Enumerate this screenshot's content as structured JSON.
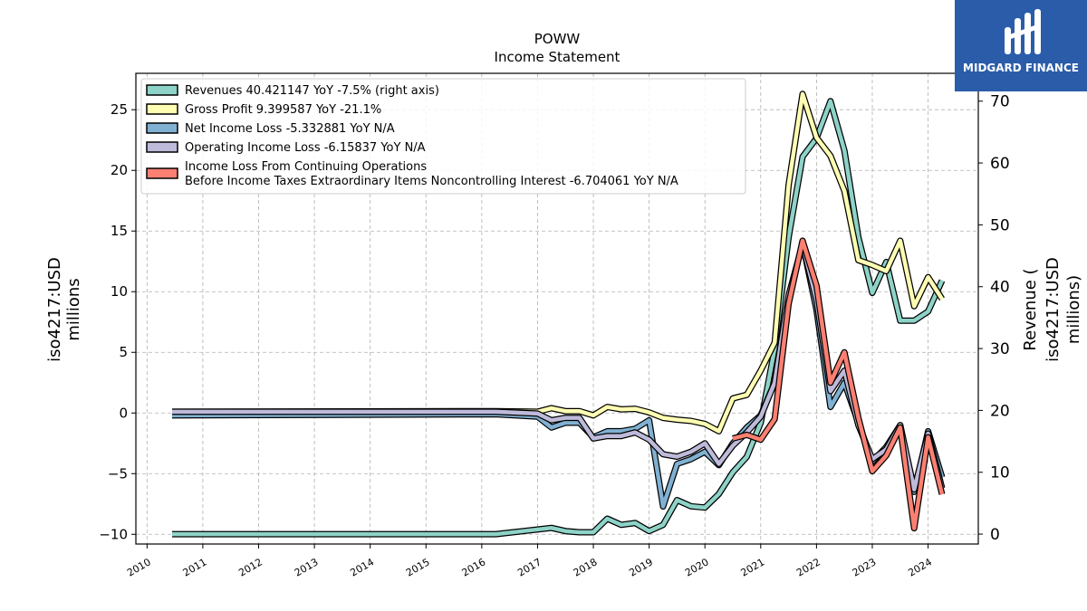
{
  "brand": {
    "name": "MIDGARD FINANCE",
    "color": "#2a5caa",
    "logo_icon": "midgard-logo-icon"
  },
  "chart_data": {
    "type": "line",
    "title": "POWW",
    "subtitle": "Income Statement",
    "ylabel_left": [
      "iso4217:USD",
      "millions"
    ],
    "ylabel_right": [
      "Revenue (",
      "iso4217:USD",
      "millions)"
    ],
    "xlim": [
      2009.8,
      2024.9
    ],
    "ylim_left": [
      -10.8,
      28.0
    ],
    "ylim_right": [
      -1.6,
      74.5
    ],
    "yticks_left": [
      -10,
      -5,
      0,
      5,
      10,
      15,
      20,
      25
    ],
    "yticks_left_labels": [
      "−10",
      "−5",
      "0",
      "5",
      "10",
      "15",
      "20",
      "25"
    ],
    "yticks_right": [
      0,
      10,
      20,
      30,
      40,
      50,
      60,
      70
    ],
    "xticks": [
      2010,
      2011,
      2012,
      2013,
      2014,
      2015,
      2016,
      2017,
      2018,
      2019,
      2020,
      2021,
      2022,
      2023,
      2024
    ],
    "grid": true,
    "legend_position": "top-left",
    "series": [
      {
        "name": "Revenues  40.421147 YoY -7.5% (right axis)",
        "axis": "right",
        "color": "#8dd3c7",
        "points": [
          [
            2010.45,
            0
          ],
          [
            2016.25,
            0
          ],
          [
            2016.75,
            0.5
          ],
          [
            2017.25,
            1.0
          ],
          [
            2017.5,
            0.5
          ],
          [
            2017.75,
            0.3
          ],
          [
            2018.0,
            0.3
          ],
          [
            2018.25,
            2.5
          ],
          [
            2018.5,
            1.5
          ],
          [
            2018.75,
            1.8
          ],
          [
            2019.0,
            0.5
          ],
          [
            2019.25,
            1.5
          ],
          [
            2019.5,
            5.5
          ],
          [
            2019.75,
            4.5
          ],
          [
            2020.0,
            4.3
          ],
          [
            2020.25,
            6.5
          ],
          [
            2020.5,
            10.0
          ],
          [
            2020.75,
            12.5
          ],
          [
            2021.0,
            18.0
          ],
          [
            2021.25,
            30.0
          ],
          [
            2021.5,
            48.0
          ],
          [
            2021.75,
            61.0
          ],
          [
            2022.0,
            64.0
          ],
          [
            2022.25,
            70.0
          ],
          [
            2022.5,
            62.0
          ],
          [
            2022.75,
            48.0
          ],
          [
            2023.0,
            39.0
          ],
          [
            2023.25,
            44.0
          ],
          [
            2023.5,
            34.5
          ],
          [
            2023.75,
            34.5
          ],
          [
            2024.0,
            36.0
          ],
          [
            2024.25,
            41.0
          ]
        ]
      },
      {
        "name": "Gross Profit  9.399587 YoY -21.1%",
        "axis": "left",
        "color": "#ffffb3",
        "points": [
          [
            2010.45,
            0.1
          ],
          [
            2016.25,
            0.15
          ],
          [
            2017.0,
            0.1
          ],
          [
            2017.25,
            0.4
          ],
          [
            2017.5,
            0.15
          ],
          [
            2017.75,
            0.15
          ],
          [
            2018.0,
            -0.2
          ],
          [
            2018.25,
            0.5
          ],
          [
            2018.5,
            0.3
          ],
          [
            2018.75,
            0.35
          ],
          [
            2019.0,
            0.05
          ],
          [
            2019.25,
            -0.4
          ],
          [
            2019.5,
            -0.55
          ],
          [
            2019.75,
            -0.65
          ],
          [
            2020.0,
            -0.9
          ],
          [
            2020.25,
            -1.5
          ],
          [
            2020.5,
            1.2
          ],
          [
            2020.75,
            1.5
          ],
          [
            2021.0,
            3.5
          ],
          [
            2021.25,
            5.8
          ],
          [
            2021.5,
            18.8
          ],
          [
            2021.75,
            26.3
          ],
          [
            2022.0,
            22.7
          ],
          [
            2022.25,
            21.2
          ],
          [
            2022.5,
            18.3
          ],
          [
            2022.75,
            12.6
          ],
          [
            2023.0,
            12.2
          ],
          [
            2023.25,
            11.7
          ],
          [
            2023.5,
            14.2
          ],
          [
            2023.75,
            8.8
          ],
          [
            2024.0,
            11.2
          ],
          [
            2024.25,
            9.4
          ]
        ]
      },
      {
        "name": "Net Income Loss  -5.332881 YoY N/A",
        "axis": "left",
        "color": "#80b1d3",
        "points": [
          [
            2010.45,
            -0.2
          ],
          [
            2016.25,
            -0.1
          ],
          [
            2017.0,
            -0.3
          ],
          [
            2017.25,
            -1.2
          ],
          [
            2017.5,
            -0.8
          ],
          [
            2017.75,
            -0.8
          ],
          [
            2018.0,
            -2.0
          ],
          [
            2018.25,
            -1.5
          ],
          [
            2018.5,
            -1.5
          ],
          [
            2018.75,
            -1.3
          ],
          [
            2019.0,
            -0.6
          ],
          [
            2019.25,
            -7.7
          ],
          [
            2019.5,
            -4.2
          ],
          [
            2019.75,
            -3.8
          ],
          [
            2020.0,
            -3.2
          ],
          [
            2020.25,
            -4.3
          ],
          [
            2020.5,
            -2.5
          ],
          [
            2020.75,
            -1.2
          ],
          [
            2021.0,
            -0.2
          ],
          [
            2021.25,
            2.5
          ],
          [
            2021.5,
            9.5
          ],
          [
            2021.75,
            14.0
          ],
          [
            2022.0,
            8.5
          ],
          [
            2022.25,
            0.5
          ],
          [
            2022.5,
            2.5
          ],
          [
            2022.75,
            -0.8
          ],
          [
            2023.0,
            -4.0
          ],
          [
            2023.25,
            -2.8
          ],
          [
            2023.5,
            -1.0
          ],
          [
            2023.75,
            -6.5
          ],
          [
            2024.0,
            -1.5
          ],
          [
            2024.25,
            -5.3
          ]
        ]
      },
      {
        "name": "Operating Income Loss  -6.15837 YoY N/A",
        "axis": "left",
        "color": "#bebada",
        "points": [
          [
            2010.45,
            0.1
          ],
          [
            2016.25,
            0.1
          ],
          [
            2017.0,
            -0.05
          ],
          [
            2017.25,
            -0.6
          ],
          [
            2017.5,
            -0.4
          ],
          [
            2017.75,
            -0.4
          ],
          [
            2018.0,
            -2.1
          ],
          [
            2018.25,
            -1.9
          ],
          [
            2018.5,
            -1.9
          ],
          [
            2018.75,
            -1.6
          ],
          [
            2019.0,
            -2.2
          ],
          [
            2019.25,
            -3.4
          ],
          [
            2019.5,
            -3.6
          ],
          [
            2019.75,
            -3.2
          ],
          [
            2020.0,
            -2.5
          ],
          [
            2020.25,
            -4.2
          ],
          [
            2020.5,
            -2.7
          ],
          [
            2020.75,
            -1.6
          ],
          [
            2021.0,
            -0.3
          ],
          [
            2021.25,
            2.5
          ],
          [
            2021.5,
            9.7
          ],
          [
            2021.75,
            13.9
          ],
          [
            2022.0,
            9.3
          ],
          [
            2022.25,
            1.8
          ],
          [
            2022.5,
            3.5
          ],
          [
            2022.75,
            -1.0
          ],
          [
            2023.0,
            -3.8
          ],
          [
            2023.25,
            -3.0
          ],
          [
            2023.5,
            -1.0
          ],
          [
            2023.75,
            -6.3
          ],
          [
            2024.0,
            -1.7
          ],
          [
            2024.25,
            -6.2
          ]
        ]
      },
      {
        "name": "Income Loss From Continuing Operations\nBefore Income Taxes Extraordinary Items Noncontrolling Interest  -6.704061 YoY N/A",
        "axis": "left",
        "color": "#fb8072",
        "points": [
          [
            2020.5,
            -2.1
          ],
          [
            2020.75,
            -1.8
          ],
          [
            2021.0,
            -2.2
          ],
          [
            2021.25,
            -0.5
          ],
          [
            2021.5,
            9.0
          ],
          [
            2021.75,
            14.2
          ],
          [
            2022.0,
            10.5
          ],
          [
            2022.25,
            2.5
          ],
          [
            2022.5,
            5.0
          ],
          [
            2022.75,
            -0.4
          ],
          [
            2023.0,
            -4.8
          ],
          [
            2023.25,
            -3.5
          ],
          [
            2023.5,
            -1.2
          ],
          [
            2023.75,
            -9.5
          ],
          [
            2024.0,
            -2.0
          ],
          [
            2024.25,
            -6.7
          ]
        ]
      }
    ]
  }
}
